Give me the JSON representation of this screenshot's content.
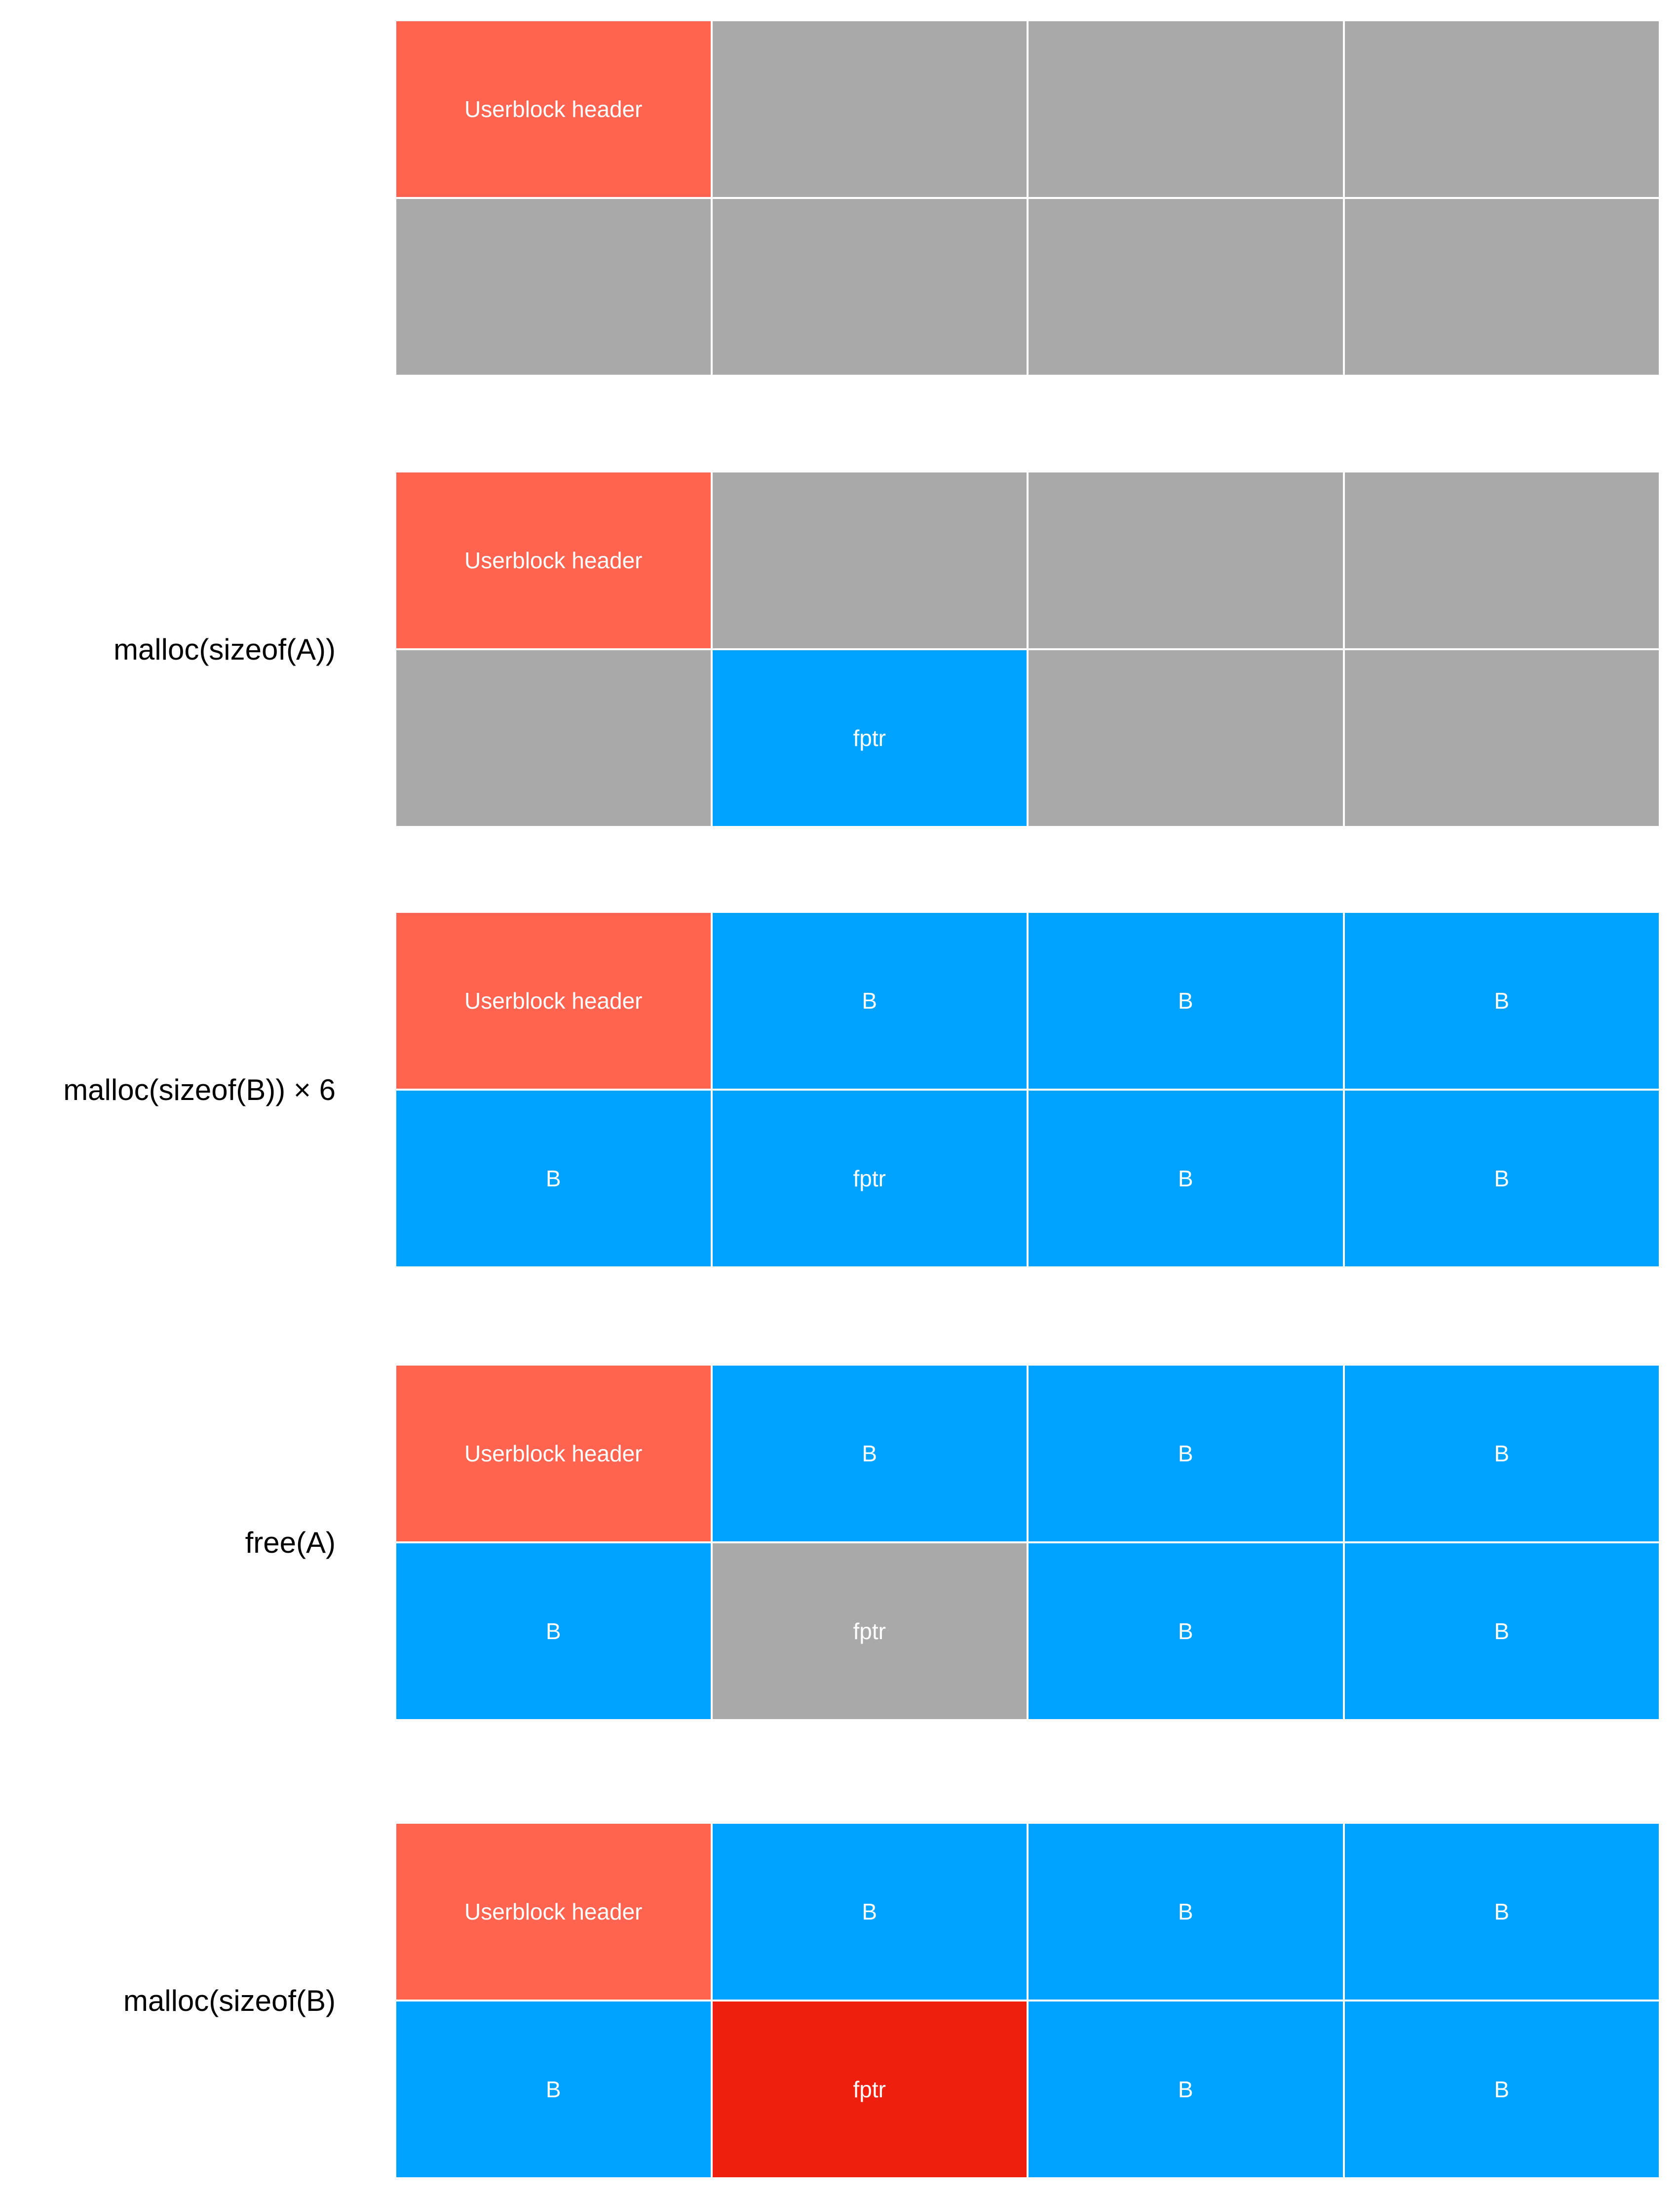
{
  "colors": {
    "free": "#a9a9a9",
    "header": "#ff6450",
    "alloc": "#00a2ff",
    "danger": "#ee1f0e"
  },
  "steps": [
    {
      "label": "",
      "cells": [
        {
          "text": "Userblock header",
          "state": "header"
        },
        {
          "text": "",
          "state": "free"
        },
        {
          "text": "",
          "state": "free"
        },
        {
          "text": "",
          "state": "free"
        },
        {
          "text": "",
          "state": "free"
        },
        {
          "text": "",
          "state": "free"
        },
        {
          "text": "",
          "state": "free"
        },
        {
          "text": "",
          "state": "free"
        }
      ]
    },
    {
      "label": "malloc(sizeof(A))",
      "cells": [
        {
          "text": "Userblock header",
          "state": "header"
        },
        {
          "text": "",
          "state": "free"
        },
        {
          "text": "",
          "state": "free"
        },
        {
          "text": "",
          "state": "free"
        },
        {
          "text": "",
          "state": "free"
        },
        {
          "text": "fptr",
          "state": "alloc"
        },
        {
          "text": "",
          "state": "free"
        },
        {
          "text": "",
          "state": "free"
        }
      ]
    },
    {
      "label": "malloc(sizeof(B)) × 6",
      "cells": [
        {
          "text": "Userblock header",
          "state": "header"
        },
        {
          "text": "B",
          "state": "alloc"
        },
        {
          "text": "B",
          "state": "alloc"
        },
        {
          "text": "B",
          "state": "alloc"
        },
        {
          "text": "B",
          "state": "alloc"
        },
        {
          "text": "fptr",
          "state": "alloc"
        },
        {
          "text": "B",
          "state": "alloc"
        },
        {
          "text": "B",
          "state": "alloc"
        }
      ]
    },
    {
      "label": "free(A)",
      "cells": [
        {
          "text": "Userblock header",
          "state": "header"
        },
        {
          "text": "B",
          "state": "alloc"
        },
        {
          "text": "B",
          "state": "alloc"
        },
        {
          "text": "B",
          "state": "alloc"
        },
        {
          "text": "B",
          "state": "alloc"
        },
        {
          "text": "fptr",
          "state": "free"
        },
        {
          "text": "B",
          "state": "alloc"
        },
        {
          "text": "B",
          "state": "alloc"
        }
      ]
    },
    {
      "label": "malloc(sizeof(B)",
      "cells": [
        {
          "text": "Userblock header",
          "state": "header"
        },
        {
          "text": "B",
          "state": "alloc"
        },
        {
          "text": "B",
          "state": "alloc"
        },
        {
          "text": "B",
          "state": "alloc"
        },
        {
          "text": "B",
          "state": "alloc"
        },
        {
          "text": "fptr",
          "state": "danger"
        },
        {
          "text": "B",
          "state": "alloc"
        },
        {
          "text": "B",
          "state": "alloc"
        }
      ]
    }
  ]
}
